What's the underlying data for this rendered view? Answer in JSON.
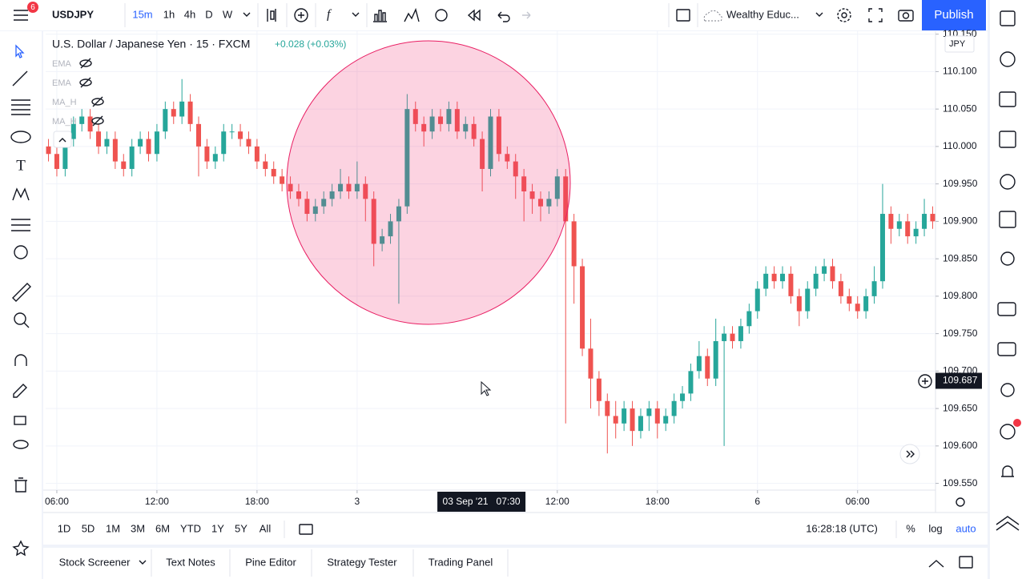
{
  "top_toolbar": {
    "symbol": "USDJPY",
    "badge": "6",
    "intervals": [
      "15m",
      "1h",
      "4h",
      "D",
      "W"
    ],
    "layout_name": "Wealthy Educ...",
    "publish": "Publish"
  },
  "legend": {
    "title": "U.S. Dollar / Japanese Yen · 15 · FXCM",
    "change": "+0.028 (+0.03%)",
    "indicators": [
      "EMA",
      "EMA",
      "MA_H",
      "MA_H"
    ]
  },
  "chart_data": {
    "type": "candlestick",
    "currency": "JPY",
    "up_color": "#26a69a",
    "down_color": "#ef5350",
    "grid": true,
    "xlim": [
      5.33,
      58.67
    ],
    "ylim": [
      109.541,
      110.155
    ],
    "xticks": [
      {
        "value": 6,
        "label": "06:00"
      },
      {
        "value": 12,
        "label": "12:00"
      },
      {
        "value": 18,
        "label": "18:00"
      },
      {
        "value": 24,
        "label": "3"
      },
      {
        "value": 36,
        "label": "12:00"
      },
      {
        "value": 42,
        "label": "18:00"
      },
      {
        "value": 48,
        "label": "6"
      },
      {
        "value": 54,
        "label": "06:00"
      }
    ],
    "yticks": [
      {
        "value": 110.15,
        "label": "110.150"
      },
      {
        "value": 110.1,
        "label": "110.100"
      },
      {
        "value": 110.05,
        "label": "110.050"
      },
      {
        "value": 110,
        "label": "110.000"
      },
      {
        "value": 109.95,
        "label": "109.950"
      },
      {
        "value": 109.9,
        "label": "109.900"
      },
      {
        "value": 109.85,
        "label": "109.850"
      },
      {
        "value": 109.8,
        "label": "109.800"
      },
      {
        "value": 109.75,
        "label": "109.750"
      },
      {
        "value": 109.7,
        "label": "109.700"
      },
      {
        "value": 109.65,
        "label": "109.650"
      },
      {
        "value": 109.6,
        "label": "109.600"
      },
      {
        "value": 109.55,
        "label": "109.550"
      }
    ],
    "x": [
      5.5,
      6,
      6.5,
      7,
      7.5,
      8,
      8.5,
      9,
      9.5,
      10,
      10.5,
      11,
      11.5,
      12,
      12.5,
      13,
      13.5,
      14,
      14.5,
      15,
      15.5,
      16,
      16.5,
      17,
      17.5,
      18,
      18.5,
      19,
      19.5,
      20,
      20.5,
      21,
      21.5,
      22,
      22.5,
      23,
      23.5,
      24,
      24.5,
      25,
      25.5,
      26,
      26.5,
      27,
      27.5,
      28,
      28.5,
      29,
      29.5,
      30,
      30.5,
      31,
      31.5,
      32,
      32.5,
      33,
      33.5,
      34,
      34.5,
      35,
      35.5,
      36,
      36.5,
      37,
      37.5,
      38,
      38.5,
      39,
      39.5,
      40,
      40.5,
      41,
      41.5,
      42,
      42.5,
      43,
      43.5,
      44,
      44.5,
      45,
      45.5,
      46,
      46.5,
      47,
      47.5,
      48,
      48.5,
      49,
      49.5,
      50,
      50.5,
      51,
      51.5,
      52,
      52.5,
      53,
      53.5,
      54,
      54.5,
      55,
      55.5,
      56,
      56.5,
      57,
      57.5,
      58,
      58.5
    ],
    "open": [
      110.0,
      109.99,
      109.97,
      110.01,
      110.03,
      110.04,
      110.02,
      110.0,
      110.01,
      109.98,
      109.97,
      110.0,
      110.01,
      109.99,
      110.02,
      110.05,
      110.04,
      110.06,
      110.03,
      110.0,
      109.98,
      109.99,
      110.02,
      110.02,
      110.01,
      110.0,
      109.98,
      109.97,
      109.96,
      109.95,
      109.94,
      109.93,
      109.91,
      109.92,
      109.93,
      109.94,
      109.95,
      109.94,
      109.95,
      109.93,
      109.87,
      109.88,
      109.9,
      109.92,
      110.05,
      110.03,
      110.02,
      110.04,
      110.03,
      110.05,
      110.02,
      110.03,
      110.01,
      109.97,
      110.04,
      109.99,
      109.98,
      109.96,
      109.94,
      109.93,
      109.92,
      109.93,
      109.96,
      109.9,
      109.84,
      109.73,
      109.69,
      109.66,
      109.64,
      109.63,
      109.65,
      109.62,
      109.64,
      109.65,
      109.63,
      109.64,
      109.66,
      109.67,
      109.7,
      109.72,
      109.69,
      109.74,
      109.75,
      109.74,
      109.76,
      109.78,
      109.81,
      109.83,
      109.82,
      109.83,
      109.8,
      109.78,
      109.81,
      109.83,
      109.84,
      109.82,
      109.8,
      109.79,
      109.78,
      109.8,
      109.82,
      109.91,
      109.89,
      109.9,
      109.88,
      109.89,
      109.91
    ],
    "high": [
      110.01,
      110.0,
      110.02,
      110.04,
      110.05,
      110.05,
      110.03,
      110.02,
      110.02,
      109.99,
      110.01,
      110.02,
      110.02,
      110.03,
      110.06,
      110.06,
      110.09,
      110.07,
      110.04,
      110.01,
      110.0,
      110.03,
      110.03,
      110.03,
      110.02,
      110.01,
      109.99,
      109.98,
      109.97,
      109.96,
      109.95,
      109.94,
      109.93,
      109.94,
      109.95,
      109.97,
      109.96,
      109.98,
      109.96,
      109.94,
      109.89,
      109.91,
      109.93,
      110.07,
      110.06,
      110.04,
      110.05,
      110.05,
      110.06,
      110.06,
      110.04,
      110.04,
      110.02,
      110.05,
      110.05,
      110.0,
      109.99,
      109.97,
      109.95,
      109.94,
      109.94,
      109.97,
      109.97,
      109.91,
      109.85,
      109.77,
      109.7,
      109.67,
      109.66,
      109.66,
      109.66,
      109.65,
      109.66,
      109.66,
      109.65,
      109.67,
      109.68,
      109.71,
      109.74,
      109.73,
      109.77,
      109.76,
      109.76,
      109.77,
      109.79,
      109.82,
      109.84,
      109.84,
      109.84,
      109.84,
      109.81,
      109.82,
      109.84,
      109.85,
      109.85,
      109.83,
      109.81,
      109.8,
      109.81,
      109.84,
      109.95,
      109.92,
      109.91,
      109.91,
      109.9,
      109.93,
      109.92
    ],
    "low": [
      109.98,
      109.96,
      109.96,
      110.0,
      110.02,
      110.01,
      109.99,
      109.99,
      109.97,
      109.96,
      109.96,
      109.99,
      109.98,
      109.98,
      110.01,
      110.03,
      110.03,
      110.02,
      109.96,
      109.97,
      109.97,
      109.98,
      110.01,
      110.0,
      109.99,
      109.97,
      109.96,
      109.95,
      109.94,
      109.93,
      109.92,
      109.9,
      109.9,
      109.91,
      109.92,
      109.93,
      109.93,
      109.93,
      109.9,
      109.84,
      109.86,
      109.87,
      109.79,
      109.91,
      110.02,
      110.0,
      110.01,
      110.02,
      110.02,
      110.01,
      110.01,
      110.0,
      109.94,
      109.96,
      109.98,
      109.97,
      109.93,
      109.9,
      109.91,
      109.9,
      109.91,
      109.92,
      109.63,
      109.79,
      109.72,
      109.65,
      109.64,
      109.59,
      109.61,
      109.62,
      109.6,
      109.61,
      109.62,
      109.61,
      109.62,
      109.63,
      109.65,
      109.66,
      109.69,
      109.68,
      109.68,
      109.6,
      109.73,
      109.73,
      109.75,
      109.77,
      109.8,
      109.81,
      109.81,
      109.79,
      109.76,
      109.77,
      109.8,
      109.82,
      109.81,
      109.79,
      109.78,
      109.77,
      109.77,
      109.79,
      109.81,
      109.87,
      109.88,
      109.87,
      109.87,
      109.88,
      109.89
    ],
    "close": [
      109.99,
      109.97,
      110.01,
      110.03,
      110.04,
      110.02,
      110.0,
      110.01,
      109.98,
      109.97,
      110.0,
      110.01,
      109.99,
      110.02,
      110.05,
      110.04,
      110.06,
      110.03,
      110.0,
      109.98,
      109.99,
      110.02,
      110.02,
      110.01,
      110.0,
      109.98,
      109.97,
      109.96,
      109.95,
      109.94,
      109.93,
      109.91,
      109.92,
      109.93,
      109.94,
      109.95,
      109.94,
      109.95,
      109.93,
      109.87,
      109.88,
      109.9,
      109.92,
      110.05,
      110.03,
      110.02,
      110.04,
      110.03,
      110.05,
      110.02,
      110.03,
      110.01,
      109.97,
      110.04,
      109.99,
      109.98,
      109.96,
      109.94,
      109.93,
      109.92,
      109.93,
      109.96,
      109.9,
      109.84,
      109.73,
      109.69,
      109.66,
      109.64,
      109.63,
      109.65,
      109.62,
      109.64,
      109.65,
      109.63,
      109.64,
      109.66,
      109.67,
      109.7,
      109.72,
      109.69,
      109.74,
      109.75,
      109.74,
      109.76,
      109.78,
      109.81,
      109.83,
      109.82,
      109.83,
      109.8,
      109.78,
      109.81,
      109.83,
      109.84,
      109.82,
      109.8,
      109.79,
      109.78,
      109.8,
      109.82,
      109.91,
      109.89,
      109.9,
      109.88,
      109.89,
      109.91,
      109.9
    ],
    "crosshair": {
      "price": 109.687,
      "x": 31.5,
      "time_label": "03 Sep '21   07:30"
    }
  },
  "range_bar": {
    "ranges": [
      "1D",
      "5D",
      "1M",
      "3M",
      "6M",
      "YTD",
      "1Y",
      "5Y",
      "All"
    ],
    "clock": "16:28:18 (UTC)",
    "percent": "%",
    "log": "log",
    "auto": "auto"
  },
  "bottom_tabs": [
    "Stock Screener",
    "Text Notes",
    "Pine Editor",
    "Strategy Tester",
    "Trading Panel"
  ]
}
